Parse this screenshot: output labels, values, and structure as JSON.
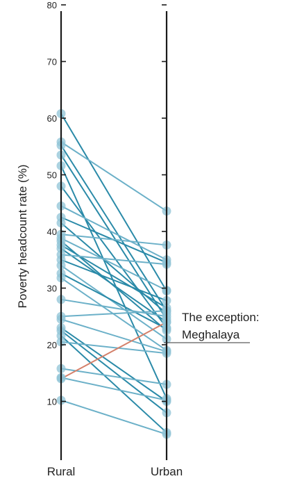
{
  "chart_data": {
    "type": "line",
    "chart_style": "slope",
    "categories": [
      "Rural",
      "Urban"
    ],
    "ylabel": "Poverty headcount rate (%)",
    "ylim": [
      0,
      80
    ],
    "y_ticks": [
      10,
      20,
      30,
      40,
      50,
      60,
      70,
      80
    ],
    "y_ticks_labeled": [
      10,
      20,
      30,
      40,
      50,
      60,
      70,
      80
    ],
    "grid": false,
    "legend": "none",
    "annotation": {
      "line1": "The exception:",
      "line2": "Meghalaya"
    },
    "colors": {
      "series_main": "#2a8aa8",
      "series_light": "#6bb0c8",
      "exception": "#d4806a",
      "point": "#8fc3d6",
      "axis": "#1a1a1a",
      "text": "#222222"
    },
    "series": [
      {
        "values": [
          60.8,
          29.5
        ],
        "tone": "main"
      },
      {
        "values": [
          55.8,
          43.6
        ],
        "tone": "light"
      },
      {
        "values": [
          55.2,
          26.0
        ],
        "tone": "main"
      },
      {
        "values": [
          53.5,
          24.5
        ],
        "tone": "main"
      },
      {
        "values": [
          51.6,
          10.5
        ],
        "tone": "main"
      },
      {
        "values": [
          48.0,
          23.0
        ],
        "tone": "main"
      },
      {
        "values": [
          44.5,
          35.0
        ],
        "tone": "light"
      },
      {
        "values": [
          42.5,
          34.5
        ],
        "tone": "main"
      },
      {
        "values": [
          41.5,
          25.5
        ],
        "tone": "main"
      },
      {
        "values": [
          39.5,
          37.6
        ],
        "tone": "light"
      },
      {
        "values": [
          38.8,
          29.6
        ],
        "tone": "light"
      },
      {
        "values": [
          38.3,
          22.5
        ],
        "tone": "main"
      },
      {
        "values": [
          37.6,
          26.5
        ],
        "tone": "main"
      },
      {
        "values": [
          37.0,
          24.0
        ],
        "tone": "main"
      },
      {
        "values": [
          35.9,
          34.2
        ],
        "tone": "light"
      },
      {
        "values": [
          35.0,
          27.8
        ],
        "tone": "main"
      },
      {
        "values": [
          34.0,
          21.0
        ],
        "tone": "light"
      },
      {
        "values": [
          32.6,
          22.8
        ],
        "tone": "main"
      },
      {
        "values": [
          31.8,
          19.0
        ],
        "tone": "light"
      },
      {
        "values": [
          28.0,
          25.0
        ],
        "tone": "light"
      },
      {
        "values": [
          25.0,
          26.0
        ],
        "tone": "light"
      },
      {
        "values": [
          24.5,
          18.8
        ],
        "tone": "light"
      },
      {
        "values": [
          23.0,
          10.0
        ],
        "tone": "main"
      },
      {
        "values": [
          22.5,
          8.0
        ],
        "tone": "main"
      },
      {
        "values": [
          21.6,
          4.5
        ],
        "tone": "main"
      },
      {
        "values": [
          20.5,
          18.5
        ],
        "tone": "light"
      },
      {
        "values": [
          15.8,
          13.0
        ],
        "tone": "light"
      },
      {
        "values": [
          14.2,
          10.2
        ],
        "tone": "light"
      },
      {
        "values": [
          14.0,
          24.0
        ],
        "tone": "exception"
      },
      {
        "values": [
          10.2,
          4.2
        ],
        "tone": "light"
      }
    ]
  }
}
